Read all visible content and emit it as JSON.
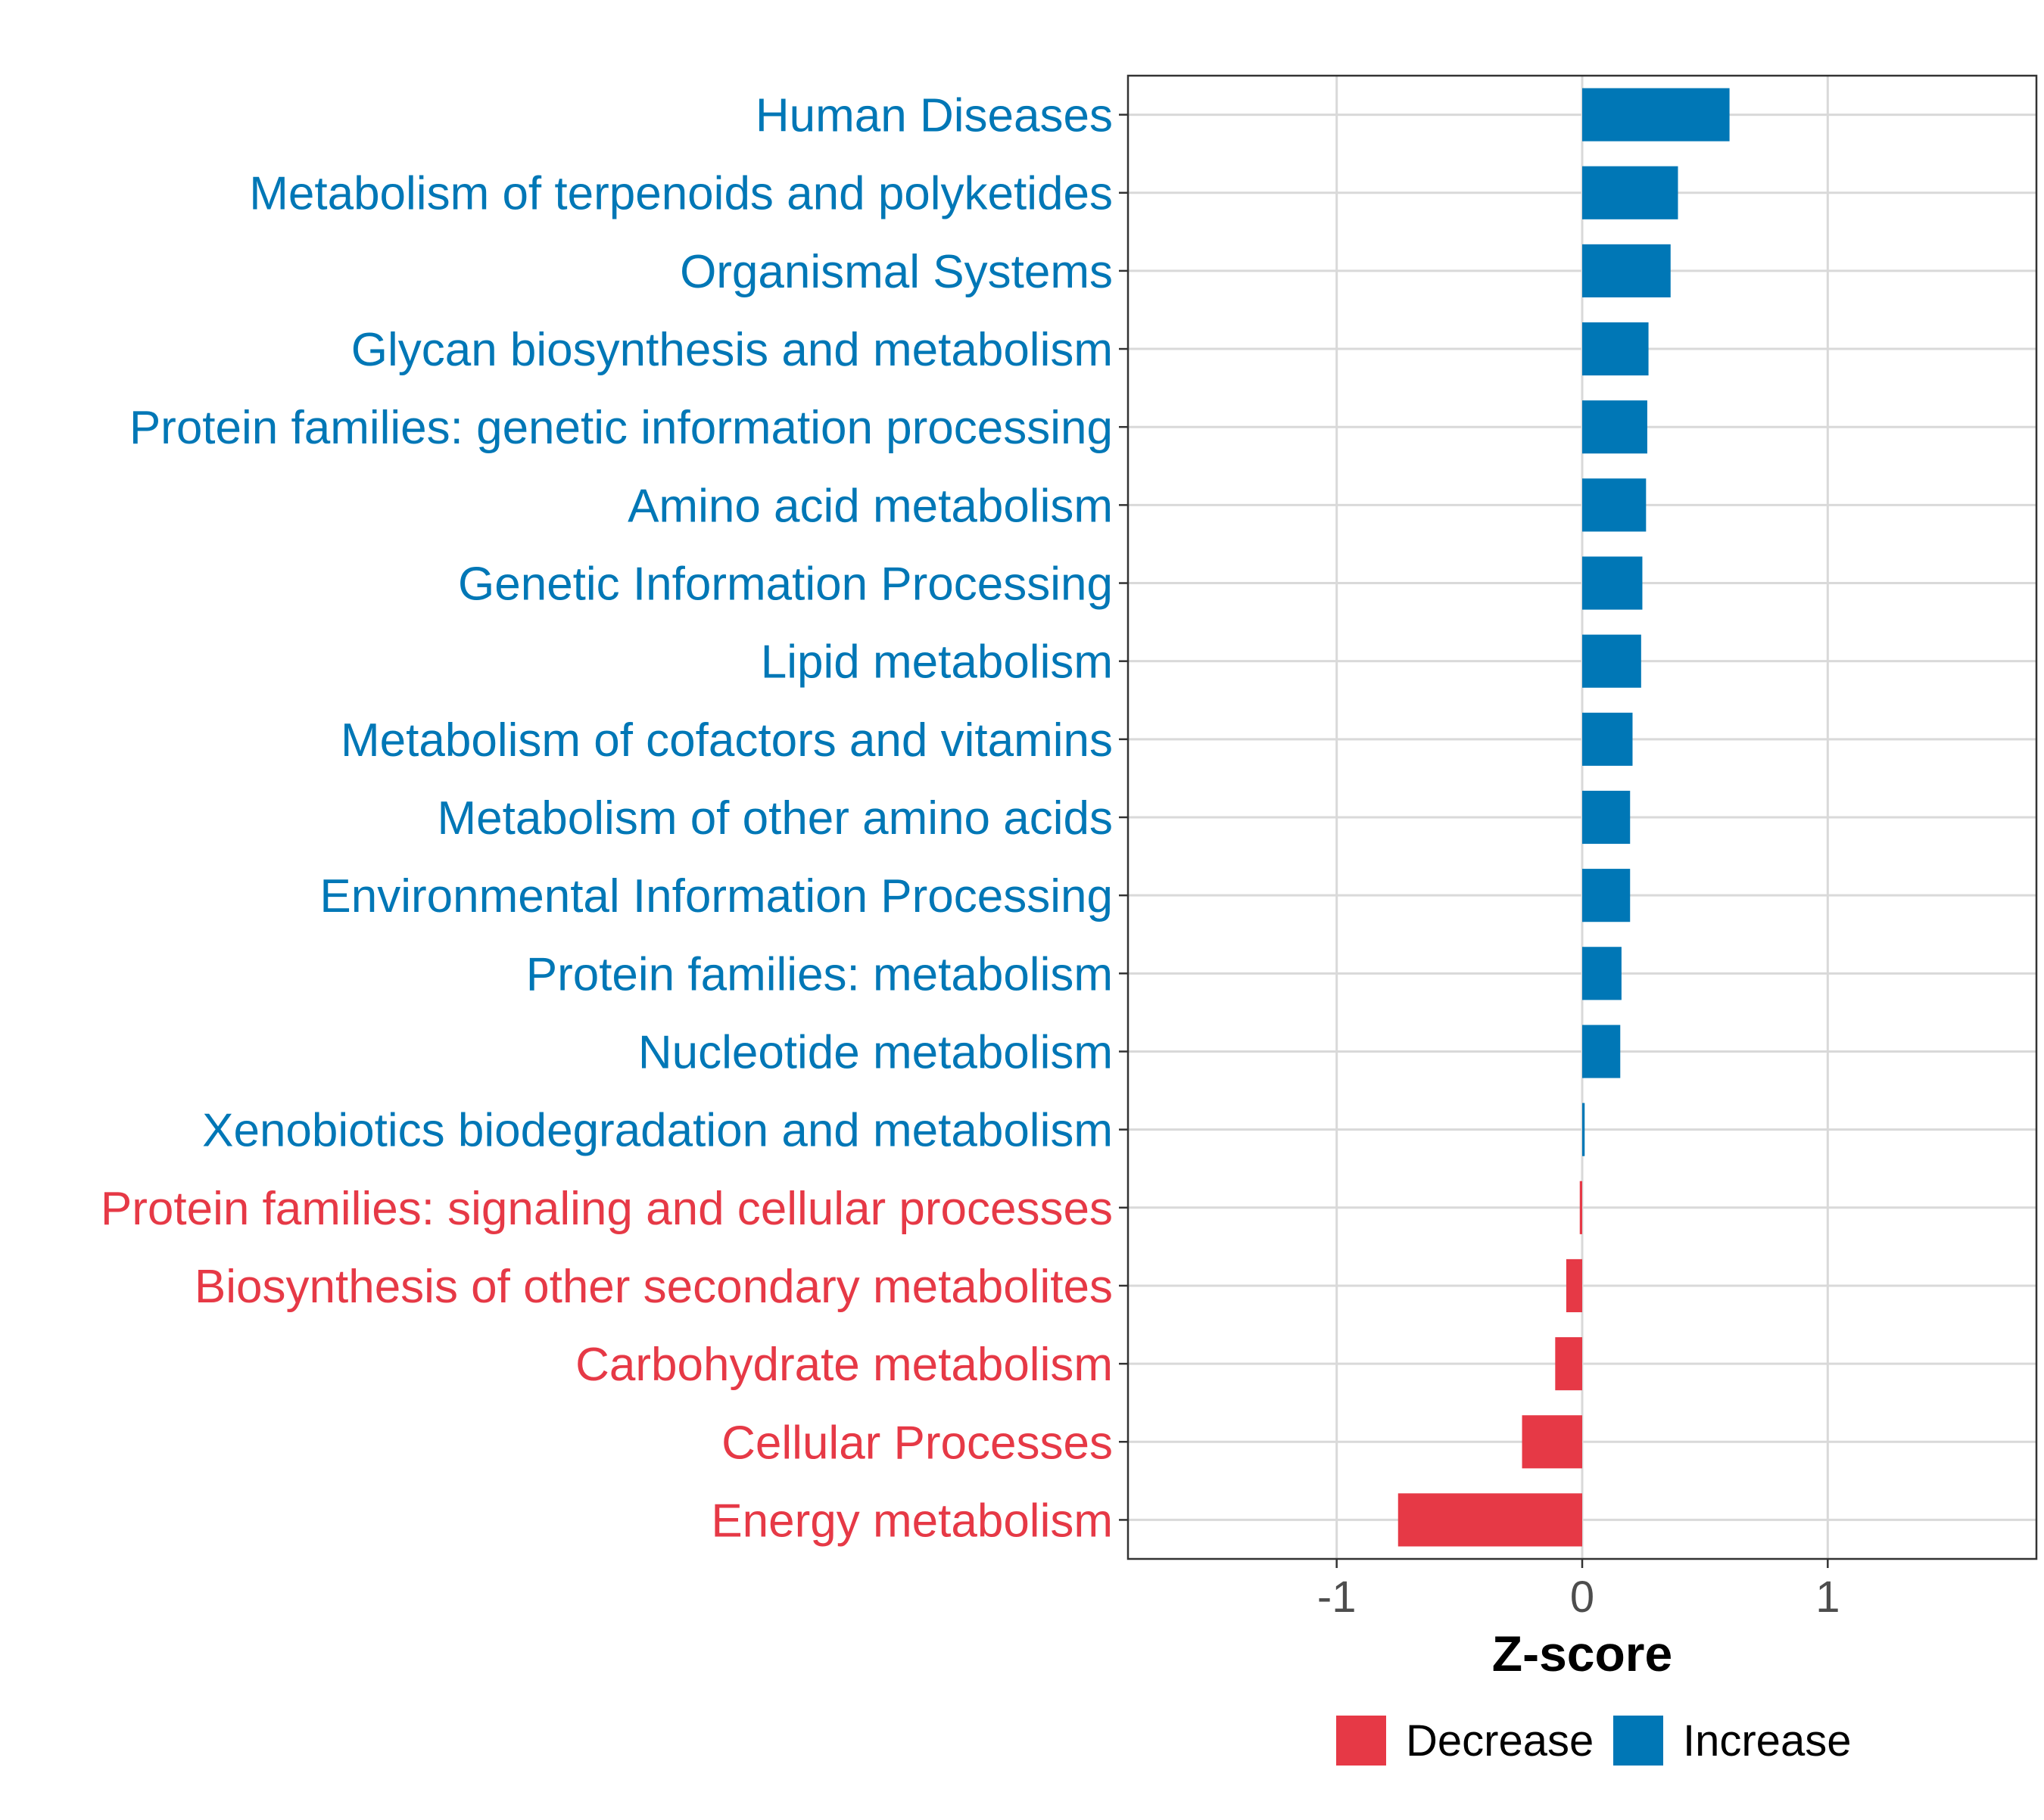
{
  "chart_data": {
    "type": "bar",
    "orientation": "horizontal",
    "title": "",
    "xlabel": "Z-score",
    "ylabel": "",
    "xlim": [
      -1.85,
      1.85
    ],
    "x_ticks": [
      -1,
      0,
      1
    ],
    "x_tick_labels": [
      "-1",
      "0",
      "1"
    ],
    "grid": true,
    "legend": {
      "placement": "bottom",
      "entries": [
        {
          "label": "Decrease",
          "color": "#E63946"
        },
        {
          "label": "Increase",
          "color": "#0077B6"
        }
      ]
    },
    "categories": [
      "Human Diseases",
      "Metabolism of terpenoids and polyketides",
      "Organismal Systems",
      "Glycan biosynthesis and metabolism",
      "Protein families: genetic information processing",
      "Amino acid metabolism",
      "Genetic Information Processing",
      "Lipid metabolism",
      "Metabolism of cofactors and vitamins",
      "Metabolism of other amino acids",
      "Environmental Information Processing",
      "Protein families: metabolism",
      "Nucleotide metabolism",
      "Xenobiotics biodegradation and metabolism",
      "Protein families: signaling and cellular processes",
      "Biosynthesis of other secondary metabolites",
      "Carbohydrate metabolism",
      "Cellular Processes",
      "Energy metabolism"
    ],
    "values": [
      0.6,
      0.39,
      0.36,
      0.27,
      0.265,
      0.26,
      0.245,
      0.24,
      0.205,
      0.195,
      0.195,
      0.16,
      0.155,
      0.01,
      -0.01,
      -0.065,
      -0.11,
      -0.245,
      -0.75
    ],
    "groups": [
      "Increase",
      "Increase",
      "Increase",
      "Increase",
      "Increase",
      "Increase",
      "Increase",
      "Increase",
      "Increase",
      "Increase",
      "Increase",
      "Increase",
      "Increase",
      "Increase",
      "Decrease",
      "Decrease",
      "Decrease",
      "Decrease",
      "Decrease"
    ],
    "colors": {
      "Increase": "#0077B6",
      "Decrease": "#E63946"
    }
  }
}
